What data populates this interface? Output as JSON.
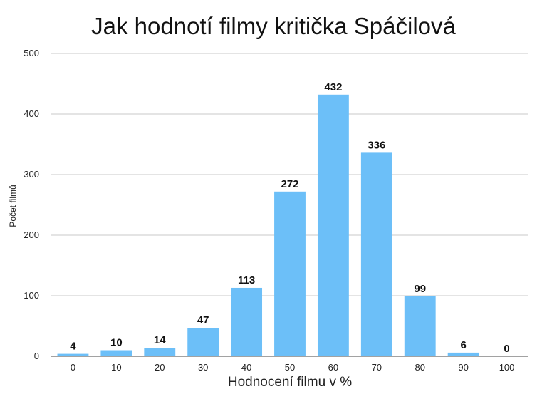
{
  "chart_data": {
    "type": "bar",
    "title": "Jak hodnotí filmy kritička Spáčilová",
    "xlabel": "Hodnocení filmu v %",
    "ylabel": "Počet filmů",
    "categories": [
      "0",
      "10",
      "20",
      "30",
      "40",
      "50",
      "60",
      "70",
      "80",
      "90",
      "100"
    ],
    "values": [
      4,
      10,
      14,
      47,
      113,
      272,
      432,
      336,
      99,
      6,
      0
    ],
    "ylim": [
      0,
      500
    ],
    "yticks": [
      "0",
      "100",
      "200",
      "300",
      "400",
      "500"
    ],
    "grid": true,
    "legend": "none",
    "bar_color": "#6cbff8"
  }
}
